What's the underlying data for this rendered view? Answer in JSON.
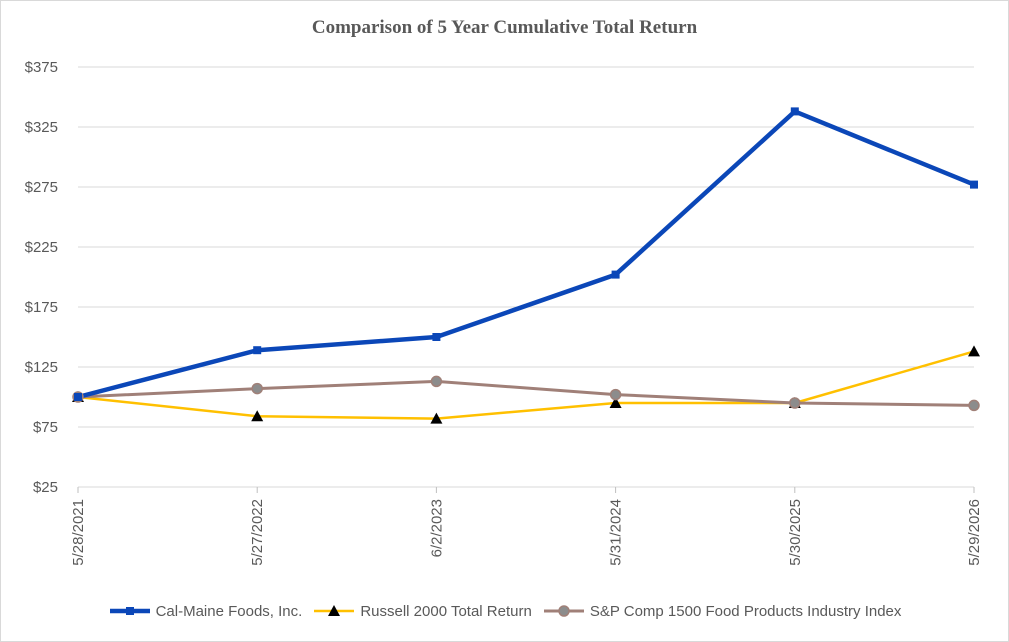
{
  "chart_data": {
    "type": "line",
    "title": "Comparison of 5 Year Cumulative Total Return",
    "categories": [
      "5/28/2021",
      "5/27/2022",
      "6/2/2023",
      "5/31/2024",
      "5/30/2025",
      "5/29/2026"
    ],
    "ylim": [
      25,
      375
    ],
    "yticks": [
      25,
      75,
      125,
      175,
      225,
      275,
      325,
      375
    ],
    "ytick_labels": [
      "$25",
      "$75",
      "$125",
      "$175",
      "$225",
      "$275",
      "$325",
      "$375"
    ],
    "grid": true,
    "legend_position": "bottom",
    "series": [
      {
        "name": "Cal-Maine Foods, Inc.",
        "values": [
          100,
          139,
          150,
          202,
          338,
          277
        ],
        "color": "#0b47b8",
        "marker": "square"
      },
      {
        "name": "Russell 2000 Total Return",
        "values": [
          100,
          84,
          82,
          95,
          95,
          138
        ],
        "color": "#ffc000",
        "marker": "triangle"
      },
      {
        "name": "S&P Comp 1500 Food Products Industry Index",
        "values": [
          100,
          107,
          113,
          102,
          95,
          93
        ],
        "color": "#a08078",
        "marker": "circle"
      }
    ]
  }
}
